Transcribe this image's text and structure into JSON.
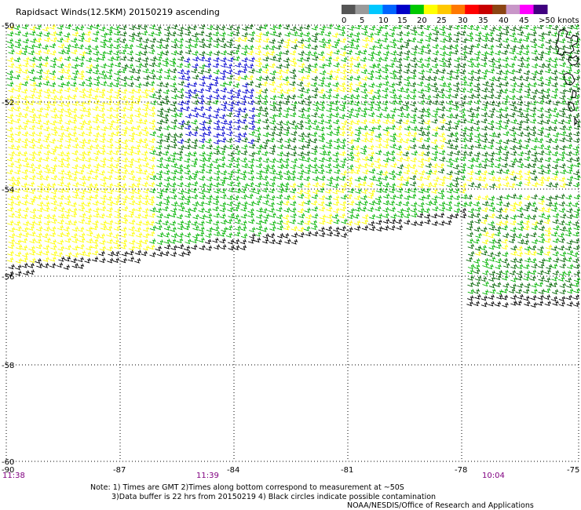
{
  "title": "Rapidsact Winds(12.5KM) 20150219 ascending",
  "legend": {
    "colors": [
      "#555555",
      "#9a9a9a",
      "#00c8ff",
      "#0064ff",
      "#0000c8",
      "#00c800",
      "#ffff00",
      "#ffc800",
      "#ff7800",
      "#ff0000",
      "#c80000",
      "#8b4513",
      "#c896c8",
      "#ff00ff",
      "#400080"
    ],
    "labels": [
      "0",
      "5",
      "10",
      "15",
      "20",
      "25",
      "30",
      "35",
      "40",
      "45",
      ">50 knots"
    ]
  },
  "lat_labels": [
    "-50",
    "-52",
    "-54",
    "-56",
    "-58",
    "-60"
  ],
  "lon_labels": [
    "-90",
    "-87",
    "-84",
    "-81",
    "-78",
    "-75"
  ],
  "time_labels": [
    "11:38",
    "11:39",
    "10:04"
  ],
  "notes": [
    "Note: 1) Times are GMT 2)Times along bottom correspond to measurement at ~50S",
    "3)Data buffer is 22 hrs from 20150219 4) Black circles indicate possible contamination"
  ],
  "credit": "NOAA/NESDIS/Office of Research and Applications",
  "wind_colors": {
    "black": "#000000",
    "blue": "#0000d0",
    "dark_green": "#006400",
    "green": "#00b400",
    "yellow": "#ffff00"
  }
}
